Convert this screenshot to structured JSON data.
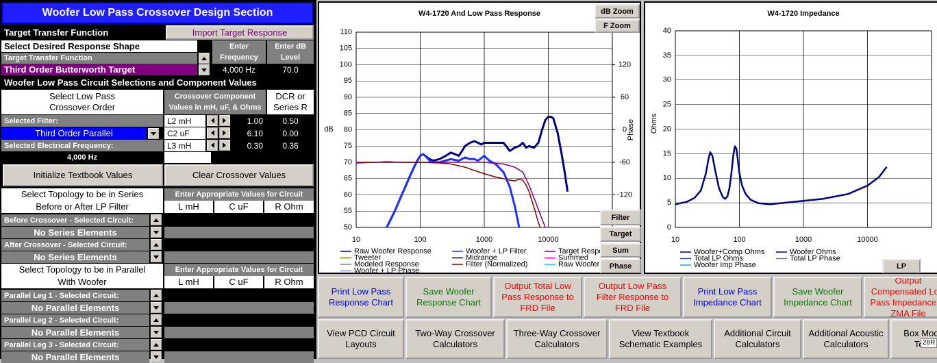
{
  "panel": {
    "title": "Woofer Low Pass Crossover Design Section",
    "target_label": "Target Transfer Function",
    "import_button": "Import Target Response",
    "shape_label": "Select Desired Response Shape",
    "freq_header": "Enter Frequency",
    "db_header": "Enter dB Level",
    "ttf_label": "Target Transfer Function",
    "target_shape": "Third Order Butterworth Target",
    "target_freq": "4,000 Hz",
    "target_level": "70.0",
    "circuit_heading": "Woofer Low Pass Circuit Selections and Component Values",
    "order_label": "Select Low Pass Crossover Order",
    "component_header": "Crossover Component Values in mH, uF, & Ohms",
    "dcr_header": "DCR or Series R",
    "selected_filter_label": "Selected Filter:",
    "filter_type": "Third Order Parallel",
    "freq_label": "Selected Electrical Frequency:",
    "freq_value": "4,000 Hz",
    "components": [
      {
        "name": "L2 mH",
        "value": "1.00",
        "dcr": "0.50"
      },
      {
        "name": "C2  uF",
        "value": "6.10",
        "dcr": "0.00"
      },
      {
        "name": "L3 mH",
        "value": "0.30",
        "dcr": "0.36"
      }
    ],
    "init_button": "Initialize Textbook Values",
    "clear_button": "Clear Crossover Values",
    "series_topology": {
      "title": "Select Topology to be in Series",
      "subtitle": "Before or After LP Filter",
      "values_header": "Enter Appropriate Values for Circuit",
      "columns": [
        "L mH",
        "C uF",
        "R Ohm"
      ],
      "rows": [
        {
          "label": "Before Crossover - Selected Circuit:",
          "value": "No Series Elements"
        },
        {
          "label": "After Crossover - Selected Circuit:",
          "value": "No Series Elements"
        }
      ]
    },
    "parallel_topology": {
      "title": "Select Topology to be in Parallel",
      "subtitle": "With Woofer",
      "values_header": "Enter Appropriate Values for Circuit",
      "columns": [
        "L mH",
        "C uF",
        "R Ohm"
      ],
      "rows": [
        {
          "label": "Parallel Leg 1 - Selected Circuit:",
          "value": "No Parallel Elements"
        },
        {
          "label": "Parallel Leg 2 - Selected Circuit:",
          "value": "No Parallel Elements"
        },
        {
          "label": "Parallel Leg 3 - Selected Circuit:",
          "value": "No Parallel Elements"
        }
      ]
    }
  },
  "chart_data": [
    {
      "type": "line",
      "title": "W4-1720  And Low Pass Response",
      "y_label": "dB",
      "y2_label": "Phase",
      "x_log": true,
      "grid": true,
      "xlim": [
        10,
        100000
      ],
      "xticks": [
        10,
        100,
        1000,
        10000
      ],
      "ylim": [
        50,
        110
      ],
      "yticks": [
        50,
        55,
        60,
        65,
        70,
        75,
        80,
        85,
        90,
        95,
        100,
        105,
        110
      ],
      "y2lim": [
        -180,
        180
      ],
      "y2ticks": [
        -120,
        -60,
        0,
        60,
        120
      ],
      "series": [
        {
          "name": "Raw Woofer Response",
          "color": "#000080",
          "line_width": 3,
          "x": [
            30,
            40,
            50,
            60,
            70,
            80,
            90,
            100,
            110,
            120,
            140,
            160,
            200,
            250,
            300,
            350,
            400,
            450,
            500,
            600,
            700,
            800,
            900,
            1000,
            1200,
            1500,
            2000,
            2200,
            2500,
            3000,
            3500,
            4000,
            4500,
            5000,
            6000,
            7000,
            8000,
            9000,
            10000,
            11000,
            12000,
            14000,
            16000,
            18000,
            20000
          ],
          "values": [
            50,
            55,
            59.5,
            63,
            66,
            68.5,
            70.5,
            72,
            72.5,
            72,
            71,
            70.5,
            71,
            72,
            73,
            72.5,
            72,
            73.5,
            75,
            76,
            76.5,
            76,
            75.5,
            76,
            76,
            76,
            76,
            75,
            73.5,
            74.5,
            75,
            76,
            74.5,
            75,
            74.5,
            76,
            80,
            83,
            84,
            84,
            83.5,
            79,
            73,
            67,
            61
          ]
        },
        {
          "name": "Woofer + LP Filter",
          "color": "#1f2fff",
          "line_width": 3,
          "x": [
            30,
            40,
            50,
            60,
            70,
            80,
            90,
            100,
            110,
            120,
            140,
            160,
            200,
            300,
            400,
            500,
            600,
            700,
            800,
            1000,
            1200,
            1500,
            2000,
            2500,
            3000,
            3500
          ],
          "values": [
            50,
            55,
            59.5,
            63,
            66,
            68.5,
            70.5,
            72,
            72.5,
            72,
            70.5,
            70,
            70,
            71,
            70.5,
            71.5,
            71,
            71,
            70.5,
            72,
            70.5,
            69.5,
            67,
            62.5,
            56.5,
            50
          ]
        },
        {
          "name": "Target Response",
          "color": "#800080",
          "line_width": 1.5,
          "x": [
            10,
            20,
            30,
            50,
            100,
            300,
            1000,
            2000,
            3000,
            4000,
            5000,
            6000,
            7000,
            8000,
            9000
          ],
          "values": [
            69.8,
            70,
            70.2,
            70,
            70,
            70,
            70,
            69.5,
            68.5,
            67,
            63,
            59,
            55.5,
            52.5,
            50
          ]
        },
        {
          "name": "Tweeter",
          "color": "#808000",
          "line_width": 1.5,
          "x": [],
          "values": []
        },
        {
          "name": "Midrange",
          "color": "#000000",
          "line_width": 1.5,
          "x": [],
          "values": []
        },
        {
          "name": "Summed",
          "color": "#ff00ff",
          "line_width": 1.5,
          "x": [],
          "values": []
        },
        {
          "name": "Modeled Response",
          "color": "#808080",
          "line_width": 1.5,
          "x": [],
          "values": []
        },
        {
          "name": "Filter (Normalized)",
          "color": "#800000",
          "line_width": 1.5,
          "x": [
            10,
            30,
            100,
            200,
            300,
            500,
            700,
            1000,
            1500,
            2000,
            2500,
            3000,
            3500,
            4000,
            4500,
            5000,
            6000,
            7000,
            7500
          ],
          "values": [
            70,
            70,
            70,
            69.8,
            69.5,
            68.5,
            67.5,
            66.5,
            65.5,
            65,
            64.5,
            64.3,
            64.8,
            64.5,
            63,
            61,
            56,
            51.5,
            50
          ]
        },
        {
          "name": "Raw Woofer Phase",
          "color": "#00ccff",
          "line_width": 1.5,
          "x": [],
          "values": []
        },
        {
          "name": "Woofer + LP Phase",
          "color": "#6699ff",
          "line_width": 1.5,
          "x": [],
          "values": []
        }
      ]
    },
    {
      "type": "line",
      "title": "W4-1720  Impedance",
      "y_label": "Ohms",
      "x_log": true,
      "grid": true,
      "xlim": [
        10,
        100000
      ],
      "xticks": [
        10,
        100,
        1000,
        10000
      ],
      "ylim": [
        0,
        40
      ],
      "yticks": [
        0,
        5,
        10,
        15,
        20,
        25,
        30,
        35,
        40
      ],
      "series": [
        {
          "name": "Woofer+Comp Ohms",
          "color": "#000080",
          "line_width": 2.5,
          "x": [
            10,
            15,
            20,
            25,
            30,
            33,
            35,
            38,
            42,
            48,
            55,
            60,
            65,
            70,
            75,
            80,
            85,
            90,
            95,
            100,
            110,
            125,
            150,
            200,
            300,
            500,
            1000,
            2000,
            5000,
            10000,
            15000,
            20000
          ],
          "values": [
            4.7,
            5.2,
            6,
            7.5,
            11,
            14,
            15.3,
            14.5,
            11.5,
            8,
            6.2,
            5.8,
            6.3,
            8,
            11,
            14.5,
            16.5,
            16,
            13.5,
            11,
            8.5,
            6.8,
            5.6,
            4.9,
            4.7,
            5,
            5.4,
            5.8,
            6.8,
            8.5,
            10.2,
            12.3
          ]
        },
        {
          "name": "Woofer Ohms",
          "color": "#000080",
          "line_width": 1.5,
          "x": [],
          "values": []
        },
        {
          "name": "Total LP Ohms",
          "color": "#0066cc",
          "line_width": 1.5,
          "x": [],
          "values": []
        },
        {
          "name": "Total LP Phase",
          "color": "#808080",
          "line_width": 1.5,
          "x": [],
          "values": []
        },
        {
          "name": "Woofer Imp Phase",
          "color": "#00aaff",
          "line_width": 1.5,
          "x": [],
          "values": []
        }
      ]
    }
  ],
  "chart_buttons": [
    "dB Zoom",
    "F Zoom",
    "Filter",
    "Target",
    "Sum",
    "Phase"
  ],
  "impedance_buttons": [
    "LP"
  ],
  "bottom_buttons": [
    {
      "label": "Print Low Pass Response Chart",
      "color": "#0000ff"
    },
    {
      "label": "Save Woofer Response Chart",
      "color": "#008000"
    },
    {
      "label": "Output Total  Low Pass Response to FRD File",
      "color": "#ff0000"
    },
    {
      "label": "Output Low Pass Filter Response to FRD File",
      "color": "#ff0000"
    },
    {
      "label": "Print Low Pass Impedance Chart",
      "color": "#0000ff"
    },
    {
      "label": "Save Woofer Impedance Chart",
      "color": "#008000"
    },
    {
      "label": "Output Compensated Low Pass Impedance to ZMA File",
      "color": "#ff0000"
    },
    {
      "label": "View PCD Circuit Layouts",
      "color": "#000000"
    },
    {
      "label": "Two-Way Crossover Calculators",
      "color": "#000000"
    },
    {
      "label": "Three-Way Crossover Calculators",
      "color": "#000000"
    },
    {
      "label": "View Textbook Schematic Examples",
      "color": "#000000"
    },
    {
      "label": "Additional Circuit Calculators",
      "color": "#000000"
    },
    {
      "label": "Additional Acoustic Calculators",
      "color": "#000000"
    },
    {
      "label": "Box Model Tools",
      "color": "#000000"
    }
  ],
  "corner_label": "28R"
}
